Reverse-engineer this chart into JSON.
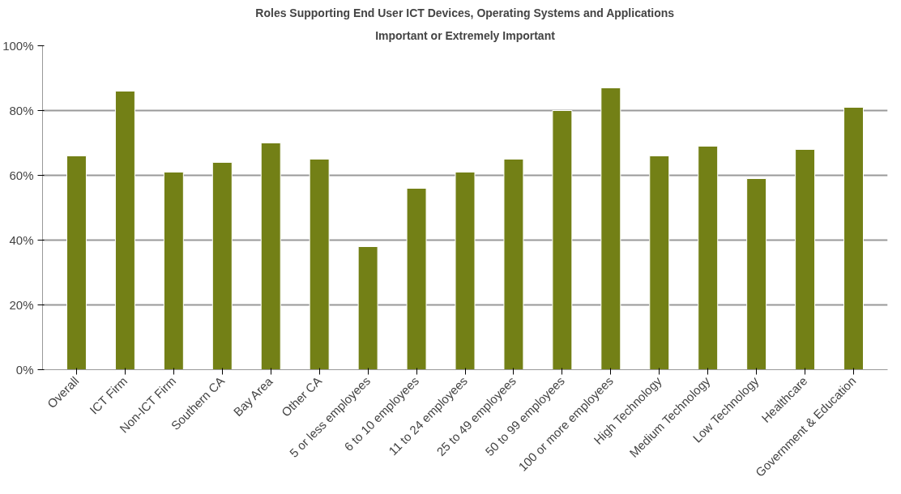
{
  "chart_data": {
    "type": "bar",
    "title": "Roles Supporting End User ICT Devices, Operating Systems and Applications",
    "subtitle": "Important or Extremely Important",
    "categories": [
      "Overall",
      "ICT Firm",
      "Non-ICT Firm",
      "Southern CA",
      "Bay Area",
      "Other CA",
      "5 or less employees",
      "6 to 10 employees",
      "11 to 24 employees",
      "25 to 49 employees",
      "50 to 99 employees",
      "100 or more employees",
      "High Technology",
      "Medium Technology",
      "Low Technology",
      "Healthcare",
      "Government & Education"
    ],
    "values": [
      66,
      86,
      61,
      64,
      70,
      65,
      38,
      56,
      61,
      65,
      80,
      87,
      66,
      69,
      59,
      68,
      81
    ],
    "color": "#738016",
    "ylim": [
      0,
      100
    ],
    "yticks": [
      {
        "value": 0,
        "label": "0%"
      },
      {
        "value": 20,
        "label": "20%"
      },
      {
        "value": 40,
        "label": "40%"
      },
      {
        "value": 60,
        "label": "60%"
      },
      {
        "value": 80,
        "label": "80%"
      },
      {
        "value": 100,
        "label": "100%"
      }
    ],
    "grid": "y"
  }
}
